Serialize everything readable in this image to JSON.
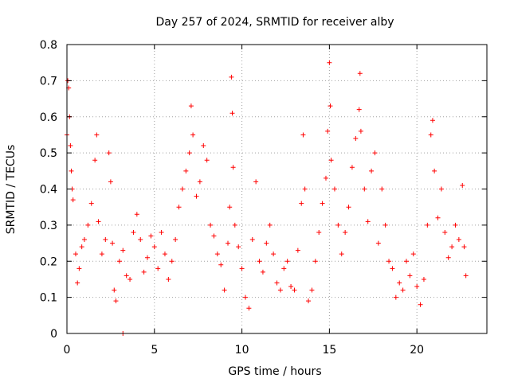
{
  "chart_data": {
    "type": "scatter",
    "title": "Day 257 of 2024, SRMTID for receiver alby",
    "xlabel": "GPS time / hours",
    "ylabel": "SRMTID / TECUs",
    "xlim": [
      0,
      24
    ],
    "ylim": [
      0,
      0.8
    ],
    "xticks": [
      0,
      5,
      10,
      15,
      20
    ],
    "xtick_labels": [
      "0",
      "5",
      "10",
      "15",
      "20"
    ],
    "yticks": [
      0,
      0.1,
      0.2,
      0.3,
      0.4,
      0.5,
      0.6,
      0.7,
      0.8
    ],
    "ytick_labels": [
      "0",
      "0.1",
      "0.2",
      "0.3",
      "0.4",
      "0.5",
      "0.6",
      "0.7",
      "0.8"
    ],
    "grid": true,
    "legend": "none",
    "marker": "plus",
    "series": [
      {
        "name": "SRMTID",
        "color": "#ff0000",
        "points": [
          [
            0.0,
            0.55
          ],
          [
            0.05,
            0.7
          ],
          [
            0.1,
            0.68
          ],
          [
            0.15,
            0.6
          ],
          [
            0.2,
            0.52
          ],
          [
            0.25,
            0.45
          ],
          [
            0.3,
            0.4
          ],
          [
            0.35,
            0.37
          ],
          [
            0.5,
            0.22
          ],
          [
            0.6,
            0.14
          ],
          [
            0.7,
            0.18
          ],
          [
            0.85,
            0.24
          ],
          [
            1.0,
            0.26
          ],
          [
            1.2,
            0.3
          ],
          [
            1.4,
            0.36
          ],
          [
            1.6,
            0.48
          ],
          [
            1.7,
            0.55
          ],
          [
            1.8,
            0.31
          ],
          [
            2.0,
            0.22
          ],
          [
            2.2,
            0.26
          ],
          [
            2.4,
            0.5
          ],
          [
            2.5,
            0.42
          ],
          [
            2.6,
            0.25
          ],
          [
            2.7,
            0.12
          ],
          [
            2.8,
            0.09
          ],
          [
            3.0,
            0.2
          ],
          [
            3.2,
            0.23
          ],
          [
            3.4,
            0.16
          ],
          [
            3.6,
            0.15
          ],
          [
            3.8,
            0.28
          ],
          [
            4.0,
            0.33
          ],
          [
            4.2,
            0.26
          ],
          [
            4.4,
            0.17
          ],
          [
            4.6,
            0.21
          ],
          [
            4.8,
            0.27
          ],
          [
            5.0,
            0.24
          ],
          [
            5.2,
            0.18
          ],
          [
            5.4,
            0.28
          ],
          [
            5.6,
            0.22
          ],
          [
            5.8,
            0.15
          ],
          [
            6.0,
            0.2
          ],
          [
            6.2,
            0.26
          ],
          [
            6.4,
            0.35
          ],
          [
            6.6,
            0.4
          ],
          [
            6.8,
            0.45
          ],
          [
            7.0,
            0.5
          ],
          [
            7.1,
            0.63
          ],
          [
            7.2,
            0.55
          ],
          [
            7.4,
            0.38
          ],
          [
            7.6,
            0.42
          ],
          [
            7.8,
            0.52
          ],
          [
            8.0,
            0.48
          ],
          [
            8.2,
            0.3
          ],
          [
            8.4,
            0.27
          ],
          [
            8.6,
            0.22
          ],
          [
            8.8,
            0.19
          ],
          [
            9.0,
            0.12
          ],
          [
            9.2,
            0.25
          ],
          [
            9.3,
            0.35
          ],
          [
            9.4,
            0.71
          ],
          [
            9.45,
            0.61
          ],
          [
            9.5,
            0.46
          ],
          [
            9.6,
            0.3
          ],
          [
            9.8,
            0.24
          ],
          [
            10.0,
            0.18
          ],
          [
            10.2,
            0.1
          ],
          [
            10.4,
            0.07
          ],
          [
            10.6,
            0.26
          ],
          [
            10.8,
            0.42
          ],
          [
            11.0,
            0.2
          ],
          [
            11.2,
            0.17
          ],
          [
            11.4,
            0.25
          ],
          [
            11.6,
            0.3
          ],
          [
            11.8,
            0.22
          ],
          [
            12.0,
            0.14
          ],
          [
            12.2,
            0.12
          ],
          [
            12.4,
            0.18
          ],
          [
            12.6,
            0.2
          ],
          [
            12.8,
            0.13
          ],
          [
            13.0,
            0.12
          ],
          [
            13.2,
            0.23
          ],
          [
            13.4,
            0.36
          ],
          [
            13.5,
            0.55
          ],
          [
            13.6,
            0.4
          ],
          [
            13.8,
            0.09
          ],
          [
            14.0,
            0.12
          ],
          [
            14.2,
            0.2
          ],
          [
            14.4,
            0.28
          ],
          [
            14.6,
            0.36
          ],
          [
            14.8,
            0.43
          ],
          [
            14.9,
            0.56
          ],
          [
            15.0,
            0.75
          ],
          [
            15.05,
            0.63
          ],
          [
            15.1,
            0.48
          ],
          [
            15.3,
            0.4
          ],
          [
            15.5,
            0.3
          ],
          [
            15.7,
            0.22
          ],
          [
            15.9,
            0.28
          ],
          [
            16.1,
            0.35
          ],
          [
            16.3,
            0.46
          ],
          [
            16.5,
            0.54
          ],
          [
            16.7,
            0.62
          ],
          [
            16.75,
            0.72
          ],
          [
            16.8,
            0.56
          ],
          [
            17.0,
            0.4
          ],
          [
            17.2,
            0.31
          ],
          [
            17.4,
            0.45
          ],
          [
            17.6,
            0.5
          ],
          [
            17.8,
            0.25
          ],
          [
            18.0,
            0.4
          ],
          [
            18.2,
            0.3
          ],
          [
            18.4,
            0.2
          ],
          [
            18.6,
            0.18
          ],
          [
            18.8,
            0.1
          ],
          [
            19.0,
            0.14
          ],
          [
            19.2,
            0.12
          ],
          [
            19.4,
            0.2
          ],
          [
            19.6,
            0.16
          ],
          [
            19.8,
            0.22
          ],
          [
            20.0,
            0.13
          ],
          [
            20.2,
            0.08
          ],
          [
            20.4,
            0.15
          ],
          [
            20.6,
            0.3
          ],
          [
            20.8,
            0.55
          ],
          [
            20.9,
            0.59
          ],
          [
            21.0,
            0.45
          ],
          [
            21.2,
            0.32
          ],
          [
            21.4,
            0.4
          ],
          [
            21.6,
            0.28
          ],
          [
            21.8,
            0.21
          ],
          [
            22.0,
            0.24
          ],
          [
            22.2,
            0.3
          ],
          [
            22.4,
            0.26
          ],
          [
            22.6,
            0.41
          ],
          [
            22.7,
            0.24
          ],
          [
            22.8,
            0.16
          ],
          [
            3.2,
            0.0
          ]
        ]
      }
    ]
  }
}
